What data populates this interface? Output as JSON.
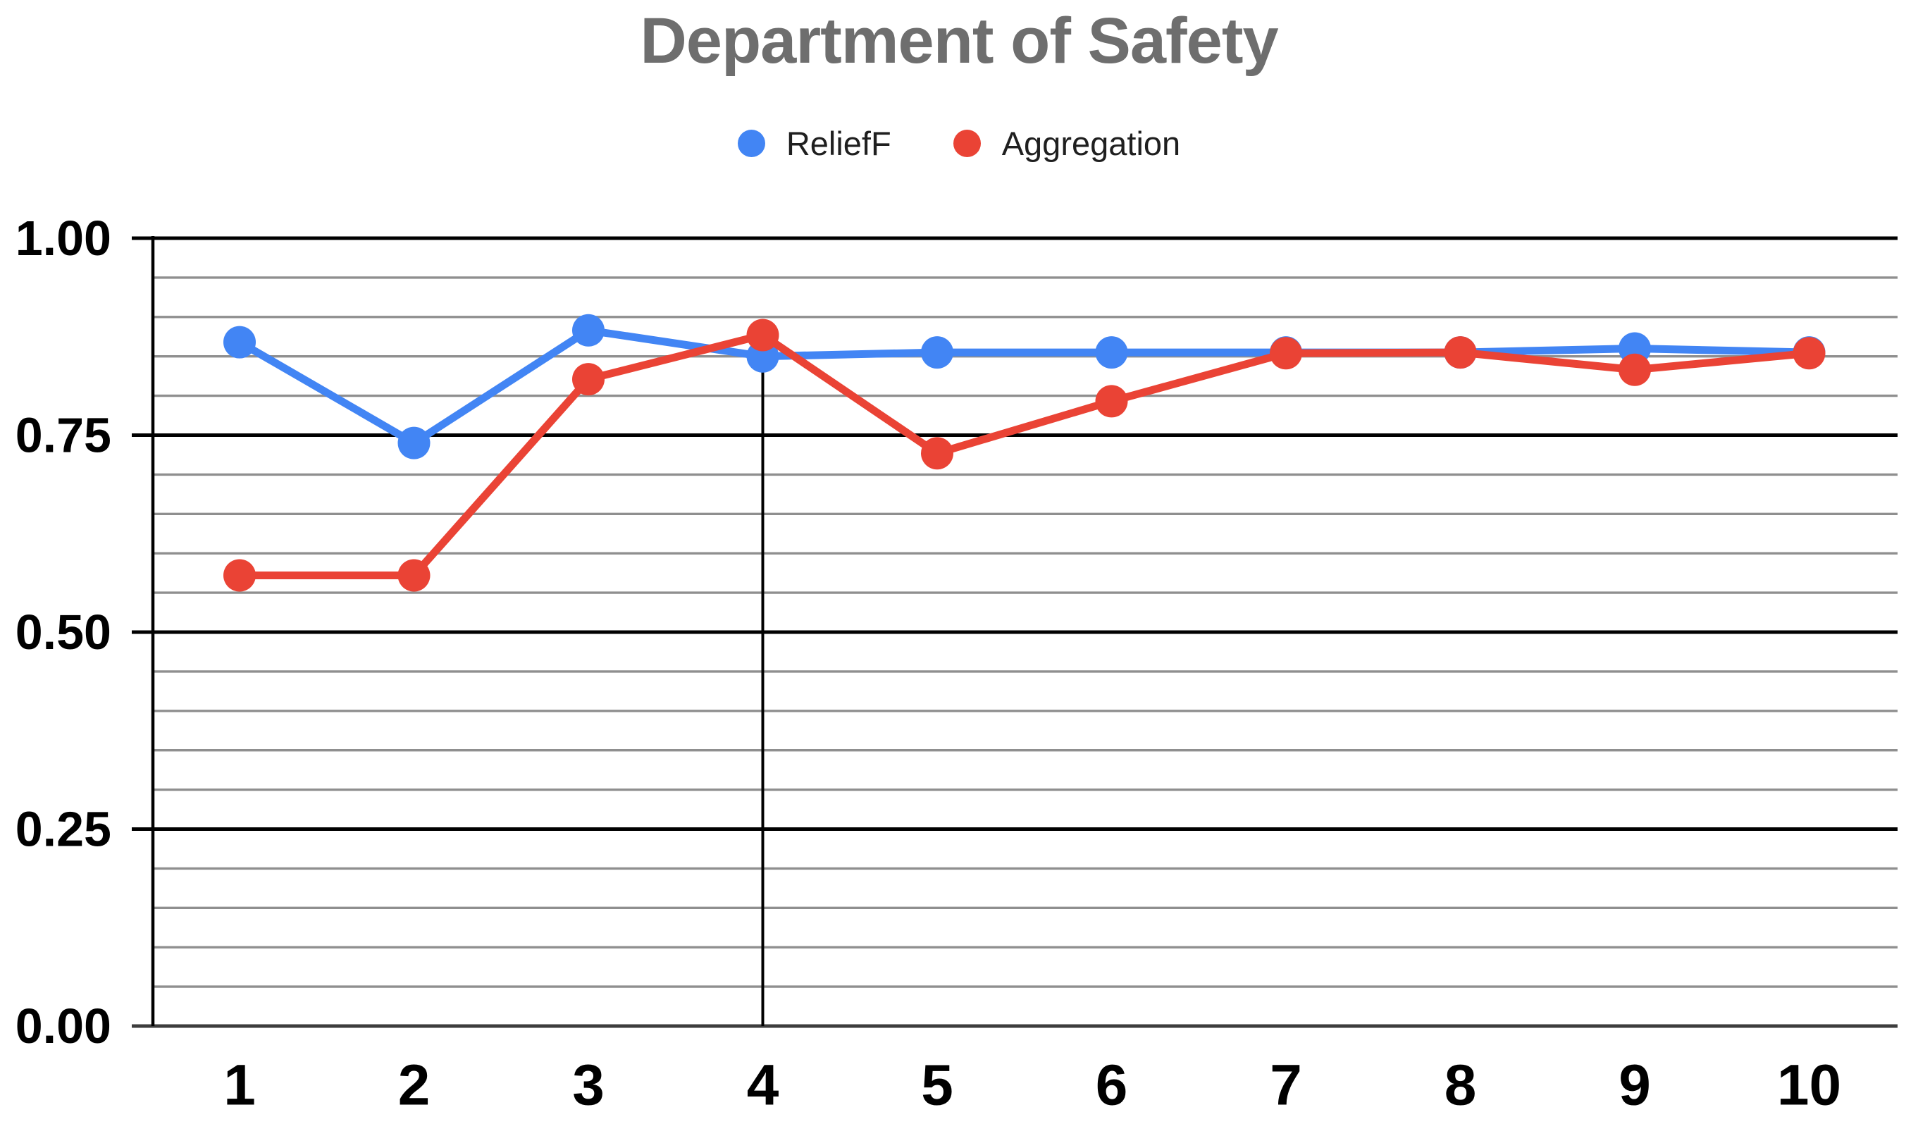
{
  "title": "Department of Safety",
  "colors": {
    "title": "#6e6e6e",
    "legend_text": "#1f1f1f",
    "axis_text": "#000000",
    "major_grid": "#000000",
    "minor_grid": "#8f8f8f",
    "baseline": "#3d3d3d",
    "axis_line": "#000000",
    "annotation_line": "#000000",
    "background": "#ffffff"
  },
  "legend": {
    "position": "top-center",
    "items": [
      {
        "label": "ReliefF",
        "color": "#4285f4"
      },
      {
        "label": "Aggregation",
        "color": "#ea4335"
      }
    ]
  },
  "chart_data": {
    "type": "line",
    "title": "Department of Safety",
    "xlabel": "",
    "ylabel": "",
    "x": [
      1,
      2,
      3,
      4,
      5,
      6,
      7,
      8,
      9,
      10
    ],
    "xtick_labels": [
      "1",
      "2",
      "3",
      "4",
      "5",
      "6",
      "7",
      "8",
      "9",
      "10"
    ],
    "series": [
      {
        "name": "ReliefF",
        "color": "#4285f4",
        "values": [
          0.868,
          0.74,
          0.883,
          0.85,
          0.855,
          0.855,
          0.855,
          0.855,
          0.86,
          0.855
        ]
      },
      {
        "name": "Aggregation",
        "color": "#ea4335",
        "values": [
          0.572,
          0.572,
          0.821,
          0.877,
          0.727,
          0.793,
          0.854,
          0.855,
          0.833,
          0.854
        ]
      }
    ],
    "ylim": [
      0,
      1
    ],
    "ytick_values": [
      0,
      0.25,
      0.5,
      0.75,
      1
    ],
    "ytick_labels": [
      "0.00",
      "0.25",
      "0.50",
      "0.75",
      "1.00"
    ],
    "minor_grid_step": 0.05,
    "grid": true,
    "legend_position": "top",
    "annotations": [
      {
        "type": "vline",
        "x": 4,
        "from": 0.85,
        "to": 0
      }
    ]
  }
}
